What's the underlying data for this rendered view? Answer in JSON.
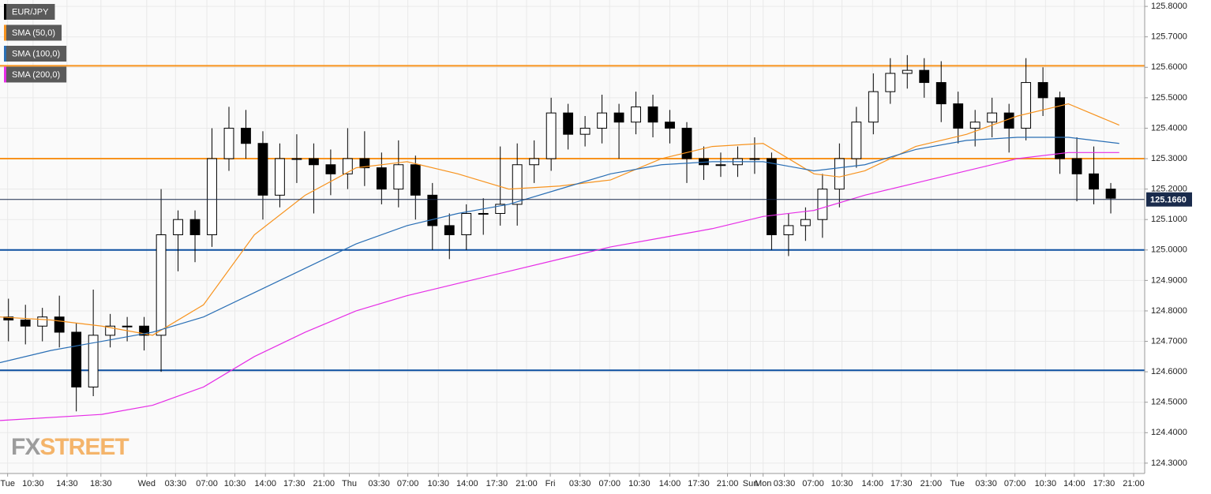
{
  "chart_data": {
    "type": "candlestick",
    "candles": {
      "name": "EUR/JPY",
      "up_color": "#ffffff",
      "down_color": "#000000",
      "x": [
        1,
        3,
        5,
        7,
        9,
        11,
        13,
        15,
        17,
        19,
        21,
        23,
        25,
        27,
        29,
        31,
        33,
        35,
        37,
        39,
        41,
        43,
        45,
        47,
        49,
        51,
        53,
        55,
        57,
        59,
        61,
        63,
        65,
        67,
        69,
        71,
        73,
        75,
        77,
        79,
        81,
        83,
        85,
        87,
        89,
        91,
        93,
        95,
        97,
        99,
        101,
        103,
        105,
        107,
        109,
        111,
        113,
        115,
        117,
        119,
        121,
        123,
        125,
        127,
        129,
        131
      ],
      "open": [
        124.78,
        124.77,
        124.75,
        124.78,
        124.73,
        124.55,
        124.72,
        124.75,
        124.75,
        124.72,
        125.05,
        125.1,
        125.05,
        125.3,
        125.4,
        125.35,
        125.18,
        125.3,
        125.3,
        125.28,
        125.25,
        125.3,
        125.27,
        125.2,
        125.28,
        125.18,
        125.08,
        125.05,
        125.12,
        125.12,
        125.15,
        125.28,
        125.3,
        125.45,
        125.38,
        125.4,
        125.45,
        125.42,
        125.47,
        125.42,
        125.4,
        125.3,
        125.28,
        125.28,
        125.3,
        125.3,
        125.05,
        125.08,
        125.1,
        125.2,
        125.3,
        125.42,
        125.52,
        125.58,
        125.59,
        125.55,
        125.48,
        125.4,
        125.42,
        125.45,
        125.4,
        125.55,
        125.5,
        125.3,
        125.25,
        125.2
      ],
      "high": [
        124.84,
        124.82,
        124.81,
        124.85,
        124.76,
        124.87,
        124.79,
        124.78,
        124.78,
        125.2,
        125.13,
        125.13,
        125.4,
        125.47,
        125.46,
        125.39,
        125.35,
        125.38,
        125.35,
        125.33,
        125.4,
        125.39,
        125.32,
        125.36,
        125.31,
        125.22,
        125.12,
        125.15,
        125.17,
        125.34,
        125.35,
        125.36,
        125.5,
        125.48,
        125.44,
        125.51,
        125.48,
        125.52,
        125.51,
        125.46,
        125.42,
        125.34,
        125.32,
        125.34,
        125.37,
        125.32,
        125.12,
        125.14,
        125.25,
        125.35,
        125.47,
        125.58,
        125.63,
        125.64,
        125.63,
        125.62,
        125.52,
        125.46,
        125.5,
        125.48,
        125.63,
        125.6,
        125.52,
        125.37,
        125.34,
        125.22
      ],
      "low": [
        124.7,
        124.69,
        124.7,
        124.68,
        124.47,
        124.52,
        124.68,
        124.7,
        124.67,
        124.6,
        124.93,
        124.96,
        125.01,
        125.26,
        125.3,
        125.1,
        125.14,
        125.22,
        125.12,
        125.18,
        125.2,
        125.21,
        125.15,
        125.14,
        125.1,
        125.0,
        124.97,
        125.0,
        125.05,
        125.08,
        125.08,
        125.22,
        125.26,
        125.33,
        125.34,
        125.35,
        125.3,
        125.38,
        125.37,
        125.35,
        125.22,
        125.23,
        125.24,
        125.24,
        125.25,
        125.0,
        124.98,
        125.03,
        125.04,
        125.14,
        125.27,
        125.38,
        125.48,
        125.53,
        125.5,
        125.42,
        125.35,
        125.34,
        125.37,
        125.32,
        125.36,
        125.44,
        125.25,
        125.16,
        125.15,
        125.12
      ],
      "close": [
        124.77,
        124.75,
        124.78,
        124.73,
        124.55,
        124.72,
        124.75,
        124.75,
        124.72,
        125.05,
        125.1,
        125.05,
        125.3,
        125.4,
        125.35,
        125.18,
        125.3,
        125.3,
        125.28,
        125.25,
        125.3,
        125.27,
        125.2,
        125.28,
        125.18,
        125.08,
        125.05,
        125.12,
        125.12,
        125.15,
        125.28,
        125.3,
        125.45,
        125.38,
        125.4,
        125.45,
        125.42,
        125.47,
        125.42,
        125.4,
        125.3,
        125.28,
        125.28,
        125.3,
        125.3,
        125.05,
        125.08,
        125.1,
        125.2,
        125.3,
        125.42,
        125.52,
        125.58,
        125.59,
        125.55,
        125.48,
        125.4,
        125.42,
        125.45,
        125.4,
        125.55,
        125.5,
        125.3,
        125.25,
        125.2,
        125.17
      ]
    },
    "series": [
      {
        "name": "SMA (50,0)",
        "color": "#f7931e",
        "x": [
          0,
          6,
          12,
          18,
          24,
          30,
          36,
          42,
          48,
          54,
          60,
          66,
          72,
          78,
          84,
          90,
          96,
          99,
          102,
          108,
          114,
          120,
          126,
          132
        ],
        "values": [
          124.78,
          124.77,
          124.75,
          124.72,
          124.82,
          125.05,
          125.18,
          125.27,
          125.29,
          125.25,
          125.2,
          125.21,
          125.23,
          125.3,
          125.34,
          125.35,
          125.25,
          125.24,
          125.26,
          125.34,
          125.38,
          125.44,
          125.48,
          125.41
        ]
      },
      {
        "name": "SMA (100,0)",
        "color": "#2a6fb5",
        "x": [
          0,
          6,
          12,
          18,
          24,
          30,
          36,
          42,
          48,
          54,
          60,
          66,
          72,
          78,
          84,
          90,
          96,
          102,
          108,
          114,
          120,
          126,
          132
        ],
        "values": [
          124.63,
          124.67,
          124.7,
          124.73,
          124.78,
          124.86,
          124.94,
          125.02,
          125.08,
          125.12,
          125.15,
          125.2,
          125.25,
          125.28,
          125.29,
          125.29,
          125.26,
          125.28,
          125.33,
          125.36,
          125.37,
          125.37,
          125.35
        ]
      },
      {
        "name": "SMA (200,0)",
        "color": "#e62de6",
        "x": [
          0,
          12,
          18,
          24,
          30,
          36,
          42,
          48,
          54,
          60,
          66,
          72,
          78,
          84,
          90,
          96,
          102,
          108,
          114,
          120,
          126,
          132
        ],
        "values": [
          124.44,
          124.46,
          124.49,
          124.55,
          124.65,
          124.73,
          124.8,
          124.85,
          124.89,
          124.93,
          124.97,
          125.01,
          125.04,
          125.07,
          125.11,
          125.13,
          125.18,
          125.22,
          125.26,
          125.3,
          125.32,
          125.32
        ]
      }
    ],
    "levels": [
      {
        "value": 125.605,
        "color": "#f7931e"
      },
      {
        "value": 125.3,
        "color": "#f7931e"
      },
      {
        "value": 125.0,
        "color": "#0d4fa0"
      },
      {
        "value": 124.605,
        "color": "#0d4fa0"
      }
    ],
    "last_price": {
      "value": 125.166,
      "label": "125.1660",
      "color": "#1a2b4c"
    },
    "xlim": [
      0,
      135
    ],
    "ylim": [
      124.266,
      125.821
    ],
    "xticks": [
      {
        "value": 0.9,
        "label": "Tue"
      },
      {
        "value": 3.9,
        "label": "10:30"
      },
      {
        "value": 7.9,
        "label": "14:30"
      },
      {
        "value": 11.9,
        "label": "18:30"
      },
      {
        "value": 17.3,
        "label": "Wed"
      },
      {
        "value": 20.7,
        "label": "03:30"
      },
      {
        "value": 24.4,
        "label": "07:00"
      },
      {
        "value": 27.7,
        "label": "10:30"
      },
      {
        "value": 31.3,
        "label": "14:00"
      },
      {
        "value": 34.7,
        "label": "17:30"
      },
      {
        "value": 38.2,
        "label": "21:00"
      },
      {
        "value": 41.2,
        "label": "Thu"
      },
      {
        "value": 44.7,
        "label": "03:30"
      },
      {
        "value": 48.1,
        "label": "07:00"
      },
      {
        "value": 51.7,
        "label": "10:30"
      },
      {
        "value": 55.1,
        "label": "14:00"
      },
      {
        "value": 58.6,
        "label": "17:30"
      },
      {
        "value": 62.1,
        "label": "21:00"
      },
      {
        "value": 64.9,
        "label": "Fri"
      },
      {
        "value": 68.4,
        "label": "03:30"
      },
      {
        "value": 71.9,
        "label": "07:00"
      },
      {
        "value": 75.4,
        "label": "10:30"
      },
      {
        "value": 79.0,
        "label": "14:00"
      },
      {
        "value": 82.4,
        "label": "17:30"
      },
      {
        "value": 85.8,
        "label": "21:00"
      },
      {
        "value": 88.5,
        "label": "Sun"
      },
      {
        "value": 90.0,
        "label": "Mon"
      },
      {
        "value": 92.5,
        "label": "03:30"
      },
      {
        "value": 95.9,
        "label": "07:00"
      },
      {
        "value": 99.3,
        "label": "10:30"
      },
      {
        "value": 102.9,
        "label": "14:00"
      },
      {
        "value": 106.3,
        "label": "17:30"
      },
      {
        "value": 109.8,
        "label": "21:00"
      },
      {
        "value": 112.9,
        "label": "Tue"
      },
      {
        "value": 116.3,
        "label": "03:30"
      },
      {
        "value": 119.7,
        "label": "07:00"
      },
      {
        "value": 123.3,
        "label": "10:30"
      },
      {
        "value": 126.7,
        "label": "14:00"
      },
      {
        "value": 130.2,
        "label": "17:30"
      },
      {
        "value": 133.7,
        "label": "21:00"
      }
    ],
    "yticks": [
      {
        "value": 124.3,
        "label": "124.3000"
      },
      {
        "value": 124.4,
        "label": "124.4000"
      },
      {
        "value": 124.5,
        "label": "124.5000"
      },
      {
        "value": 124.6,
        "label": "124.6000"
      },
      {
        "value": 124.7,
        "label": "124.7000"
      },
      {
        "value": 124.8,
        "label": "124.8000"
      },
      {
        "value": 124.9,
        "label": "124.9000"
      },
      {
        "value": 125.0,
        "label": "125.0000"
      },
      {
        "value": 125.1,
        "label": "125.1000"
      },
      {
        "value": 125.2,
        "label": "125.2000"
      },
      {
        "value": 125.3,
        "label": "125.3000"
      },
      {
        "value": 125.4,
        "label": "125.4000"
      },
      {
        "value": 125.5,
        "label": "125.5000"
      },
      {
        "value": 125.6,
        "label": "125.6000"
      },
      {
        "value": 125.7,
        "label": "125.7000"
      },
      {
        "value": 125.8,
        "label": "125.8000"
      }
    ],
    "grid": true,
    "legend": "top-left",
    "watermark": [
      "FX",
      "STREET"
    ]
  }
}
